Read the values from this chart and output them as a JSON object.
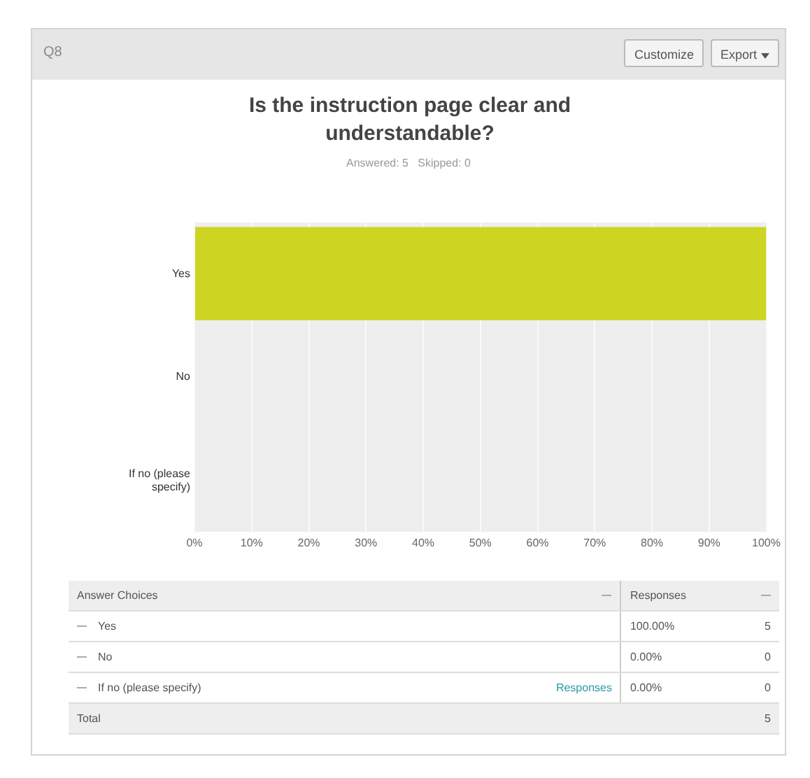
{
  "chart_data": {
    "type": "bar",
    "orientation": "horizontal",
    "title": "Is the instruction page clear and understandable?",
    "subtitle": "Answered: 5   Skipped: 0",
    "categories": [
      "Yes",
      "No",
      "If no (please specify)"
    ],
    "series": [
      {
        "color": "#cdd422",
        "values": [
          100,
          0,
          0
        ]
      }
    ],
    "xlim": [
      0,
      100
    ],
    "xticks": [
      {
        "value": 0,
        "label": "0%"
      },
      {
        "value": 10,
        "label": "10%"
      },
      {
        "value": 20,
        "label": "20%"
      },
      {
        "value": 30,
        "label": "30%"
      },
      {
        "value": 40,
        "label": "40%"
      },
      {
        "value": 50,
        "label": "50%"
      },
      {
        "value": 60,
        "label": "60%"
      },
      {
        "value": 70,
        "label": "70%"
      },
      {
        "value": 80,
        "label": "80%"
      },
      {
        "value": 90,
        "label": "90%"
      },
      {
        "value": 100,
        "label": "100%"
      }
    ],
    "grid": "x",
    "legend": false,
    "value_labels": [
      "100.00%",
      "0.00%",
      "0.00%"
    ],
    "annotations": [
      "Q8",
      "Customize",
      "Export",
      "Answer Choices",
      "Responses",
      "5",
      "0",
      "0",
      "Responses",
      "Total",
      "5"
    ]
  }
}
